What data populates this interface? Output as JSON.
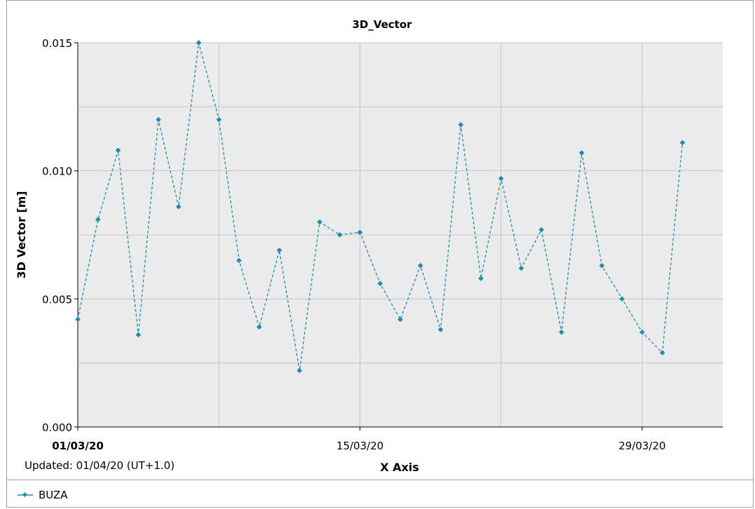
{
  "chart_data": {
    "type": "line",
    "title": "3D_Vector",
    "xlabel": "X Axis",
    "ylabel": "3D Vector [m]",
    "ylim": [
      0.0,
      0.015
    ],
    "xlim": [
      "2020-03-01",
      "2020-04-02"
    ],
    "y_ticks": [
      "0.000",
      "0.005",
      "0.010",
      "0.015"
    ],
    "x_ticks": [
      {
        "date": "2020-03-01",
        "label": "01/03/20",
        "bold": true
      },
      {
        "date": "2020-03-15",
        "label": "15/03/20",
        "bold": false
      },
      {
        "date": "2020-03-29",
        "label": "29/03/20",
        "bold": false
      }
    ],
    "grid": true,
    "legend": "bottom-left",
    "series": [
      {
        "name": "BUZA",
        "color": "#1a8db0",
        "line_style": "dashed",
        "marker": "diamond",
        "x": [
          "2020-03-01",
          "2020-03-02",
          "2020-03-03",
          "2020-03-04",
          "2020-03-05",
          "2020-03-06",
          "2020-03-07",
          "2020-03-08",
          "2020-03-09",
          "2020-03-10",
          "2020-03-11",
          "2020-03-12",
          "2020-03-13",
          "2020-03-14",
          "2020-03-15",
          "2020-03-16",
          "2020-03-17",
          "2020-03-18",
          "2020-03-19",
          "2020-03-20",
          "2020-03-21",
          "2020-03-22",
          "2020-03-23",
          "2020-03-24",
          "2020-03-25",
          "2020-03-26",
          "2020-03-27",
          "2020-03-28",
          "2020-03-29",
          "2020-03-30",
          "2020-03-31"
        ],
        "values": [
          0.0042,
          0.0081,
          0.0108,
          0.0036,
          0.012,
          0.0086,
          0.015,
          0.012,
          0.0065,
          0.0039,
          0.0069,
          0.0022,
          0.008,
          0.0075,
          0.0076,
          0.0056,
          0.0042,
          0.0063,
          0.0038,
          0.0118,
          0.0058,
          0.0097,
          0.0062,
          0.0077,
          0.0037,
          0.0107,
          0.0063,
          0.005,
          0.0037,
          0.0029,
          0.0111
        ]
      }
    ]
  },
  "footer": {
    "updated": "Updated: 01/04/20 (UT+1.0)"
  },
  "colors": {
    "plot_background": "#ebebeb",
    "grid": "#c4c4c4",
    "series": "#1a8db0"
  }
}
